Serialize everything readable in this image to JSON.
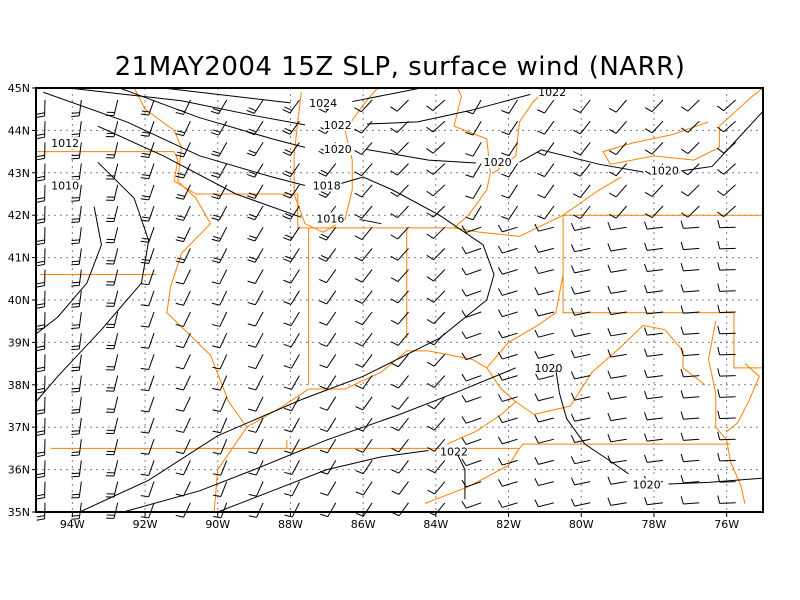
{
  "title": "21MAY2004 15Z SLP, surface wind (NARR)",
  "chart_data": {
    "type": "map",
    "title": "21MAY2004 15Z SLP, surface wind (NARR)",
    "lon_range_w": [
      95,
      75
    ],
    "lat_range_n": [
      35,
      45
    ],
    "x_ticks": [
      "94W",
      "92W",
      "90W",
      "88W",
      "86W",
      "84W",
      "82W",
      "80W",
      "78W",
      "76W"
    ],
    "x_tick_values": [
      94,
      92,
      90,
      88,
      86,
      84,
      82,
      80,
      78,
      76
    ],
    "y_ticks": [
      "35N",
      "36N",
      "37N",
      "38N",
      "39N",
      "40N",
      "41N",
      "42N",
      "43N",
      "44N",
      "45N"
    ],
    "y_tick_values": [
      35,
      36,
      37,
      38,
      39,
      40,
      41,
      42,
      43,
      44,
      45
    ],
    "grid": true,
    "colors": {
      "contour": "#000000",
      "boundary": "#ff8000",
      "grid": "#808080"
    },
    "contours": [
      {
        "label": "1024",
        "label_at": [
          87.1,
          44.65
        ],
        "points": [
          [
            91.5,
            45
          ],
          [
            89.5,
            44.8
          ],
          [
            88,
            44.65
          ]
        ]
      },
      {
        "label": "1024",
        "label_at": null,
        "points": [
          [
            86.3,
            44.68
          ],
          [
            85,
            44.9
          ],
          [
            84.4,
            45
          ]
        ]
      },
      {
        "label": "1022",
        "label_at": [
          86.7,
          44.13
        ],
        "points": [
          [
            94.1,
            45
          ],
          [
            91,
            44.7
          ],
          [
            89,
            44.35
          ],
          [
            87.6,
            44.13
          ]
        ]
      },
      {
        "label": "1022",
        "label_at": [
          80.8,
          44.9
        ],
        "points": [
          [
            85.9,
            44.15
          ],
          [
            84.5,
            44.2
          ],
          [
            83,
            44.48
          ],
          [
            81.4,
            44.85
          ]
        ]
      },
      {
        "label": "1020",
        "label_at": [
          86.7,
          43.56
        ],
        "points": [
          [
            92.7,
            45
          ],
          [
            90.5,
            44.3
          ],
          [
            88.5,
            43.8
          ],
          [
            87.6,
            43.6
          ]
        ]
      },
      {
        "label": "1020",
        "label_at": [
          82.3,
          43.25
        ],
        "points": [
          [
            85.9,
            43.55
          ],
          [
            84.2,
            43.3
          ],
          [
            82.9,
            43.23
          ]
        ]
      },
      {
        "label": "1020",
        "label_at": [
          77.7,
          43.05
        ],
        "points": [
          [
            81.7,
            43.25
          ],
          [
            81.1,
            43.54
          ],
          [
            79.5,
            43.2
          ],
          [
            78.3,
            43.02
          ]
        ]
      },
      {
        "label": "1020",
        "label_at": null,
        "points": [
          [
            77.2,
            43.05
          ],
          [
            76.4,
            43.15
          ],
          [
            75.7,
            43.8
          ],
          [
            75,
            44.45
          ]
        ]
      },
      {
        "label": "1018",
        "label_at": [
          87.0,
          42.7
        ],
        "points": [
          [
            94.8,
            44.9
          ],
          [
            92.5,
            44.2
          ],
          [
            90.5,
            43.4
          ],
          [
            88.5,
            42.9
          ],
          [
            87.6,
            42.7
          ]
        ]
      },
      {
        "label": "1018",
        "label_at": null,
        "points": [
          [
            86.6,
            42.75
          ],
          [
            86,
            42.9
          ],
          [
            85.2,
            42.6
          ],
          [
            83.9,
            42.0
          ],
          [
            82.7,
            41.3
          ],
          [
            82.4,
            40.6
          ],
          [
            82.6,
            40.0
          ],
          [
            83.9,
            39.1
          ],
          [
            86,
            38.2
          ],
          [
            87.7,
            37.65
          ],
          [
            90,
            36.8
          ],
          [
            91.9,
            35.75
          ],
          [
            93.8,
            35
          ]
        ]
      },
      {
        "label": "1016",
        "label_at": [
          86.9,
          41.92
        ],
        "points": [
          [
            93.3,
            44.1
          ],
          [
            91.5,
            43.4
          ],
          [
            89.5,
            42.5
          ],
          [
            87.7,
            41.95
          ]
        ]
      },
      {
        "label": "1016",
        "label_at": null,
        "points": [
          [
            86.1,
            41.9
          ],
          [
            85.5,
            41.8
          ]
        ]
      },
      {
        "label": "1012",
        "label_at": [
          94.2,
          43.7
        ],
        "points": [
          [
            93.3,
            43.25
          ],
          [
            92.3,
            42.4
          ],
          [
            91.9,
            41.4
          ],
          [
            92.1,
            40.4
          ],
          [
            93.2,
            39.3
          ],
          [
            94.4,
            38.2
          ],
          [
            95,
            37.6
          ]
        ]
      },
      {
        "label": "1010",
        "label_at": [
          94.2,
          42.7
        ],
        "points": [
          [
            93.4,
            42.2
          ],
          [
            93.2,
            41.3
          ],
          [
            93.6,
            40.4
          ],
          [
            94.4,
            39.6
          ],
          [
            95,
            39.2
          ]
        ]
      },
      {
        "label": "1020",
        "label_at": [
          80.9,
          38.4
        ],
        "points": [
          [
            81.8,
            38.4
          ],
          [
            83.5,
            37.8
          ],
          [
            85,
            37.3
          ],
          [
            87,
            36.7
          ],
          [
            89,
            36.0
          ],
          [
            90.5,
            35.5
          ],
          [
            92.6,
            35.0
          ]
        ]
      },
      {
        "label": "1020",
        "label_at": null,
        "points": [
          [
            80.7,
            38.35
          ],
          [
            80.6,
            37.8
          ],
          [
            80.4,
            37.2
          ],
          [
            79.9,
            36.6
          ],
          [
            79.2,
            36.2
          ],
          [
            78.7,
            35.9
          ]
        ]
      },
      {
        "label": "1020",
        "label_at": [
          78.2,
          35.65
        ],
        "points": [
          [
            77.6,
            35.66
          ],
          [
            76.5,
            35.7
          ],
          [
            75,
            35.8
          ]
        ]
      },
      {
        "label": "1022",
        "label_at": [
          83.5,
          36.43
        ],
        "points": [
          [
            90,
            35
          ],
          [
            88.5,
            35.5
          ],
          [
            87,
            36.0
          ],
          [
            85.5,
            36.3
          ],
          [
            84.2,
            36.45
          ]
        ]
      },
      {
        "label": "1022",
        "label_at": null,
        "points": [
          [
            83.4,
            36.35
          ],
          [
            83.2,
            36.0
          ],
          [
            83.2,
            35.3
          ]
        ]
      }
    ]
  }
}
